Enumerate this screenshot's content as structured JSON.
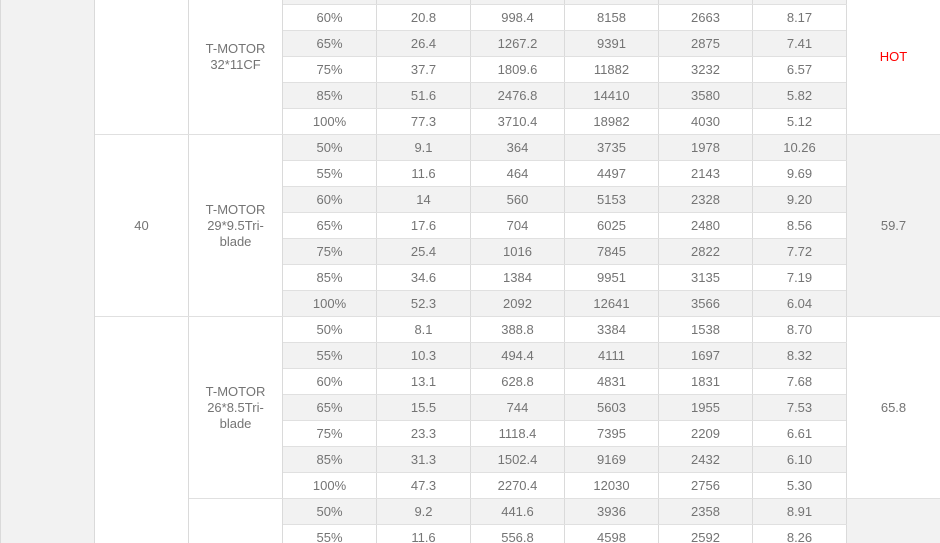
{
  "colors": {
    "text": "#747474",
    "stripe_bg": "#f2f2f2",
    "white_bg": "#ffffff",
    "hot_red": "#ff0000",
    "border": "#e0e0e0"
  },
  "table": {
    "left_block": {
      "label": "",
      "rowspan": 22
    },
    "col2_cells": [
      {
        "label": "",
        "rowspan": 6
      },
      {
        "label": "40",
        "rowspan": 7
      },
      {
        "label": "",
        "rowspan": 9
      }
    ],
    "sections": [
      {
        "propeller": "T-MOTOR 32*11CF",
        "note": {
          "label": "HOT",
          "color": "#ff0000",
          "bg": "#ffffff"
        },
        "rows": [
          {
            "throttle": "",
            "values": [
              "",
              "",
              "",
              "",
              ""
            ],
            "partial": true
          },
          {
            "throttle": "60%",
            "values": [
              "20.8",
              "998.4",
              "8158",
              "2663",
              "8.17"
            ]
          },
          {
            "throttle": "65%",
            "values": [
              "26.4",
              "1267.2",
              "9391",
              "2875",
              "7.41"
            ]
          },
          {
            "throttle": "75%",
            "values": [
              "37.7",
              "1809.6",
              "11882",
              "3232",
              "6.57"
            ]
          },
          {
            "throttle": "85%",
            "values": [
              "51.6",
              "2476.8",
              "14410",
              "3580",
              "5.82"
            ]
          },
          {
            "throttle": "100%",
            "values": [
              "77.3",
              "3710.4",
              "18982",
              "4030",
              "5.12"
            ]
          }
        ]
      },
      {
        "propeller": "T-MOTOR 29*9.5Tri-blade",
        "note": {
          "label": "59.7",
          "color": "#747474",
          "bg": "#f2f2f2"
        },
        "rows": [
          {
            "throttle": "50%",
            "values": [
              "9.1",
              "364",
              "3735",
              "1978",
              "10.26"
            ]
          },
          {
            "throttle": "55%",
            "values": [
              "11.6",
              "464",
              "4497",
              "2143",
              "9.69"
            ]
          },
          {
            "throttle": "60%",
            "values": [
              "14",
              "560",
              "5153",
              "2328",
              "9.20"
            ]
          },
          {
            "throttle": "65%",
            "values": [
              "17.6",
              "704",
              "6025",
              "2480",
              "8.56"
            ]
          },
          {
            "throttle": "75%",
            "values": [
              "25.4",
              "1016",
              "7845",
              "2822",
              "7.72"
            ]
          },
          {
            "throttle": "85%",
            "values": [
              "34.6",
              "1384",
              "9951",
              "3135",
              "7.19"
            ]
          },
          {
            "throttle": "100%",
            "values": [
              "52.3",
              "2092",
              "12641",
              "3566",
              "6.04"
            ]
          }
        ]
      },
      {
        "propeller": "T-MOTOR 26*8.5Tri-blade",
        "note": {
          "label": "65.8",
          "color": "#747474",
          "bg": "#ffffff"
        },
        "rows": [
          {
            "throttle": "50%",
            "values": [
              "8.1",
              "388.8",
              "3384",
              "1538",
              "8.70"
            ]
          },
          {
            "throttle": "55%",
            "values": [
              "10.3",
              "494.4",
              "4111",
              "1697",
              "8.32"
            ]
          },
          {
            "throttle": "60%",
            "values": [
              "13.1",
              "628.8",
              "4831",
              "1831",
              "7.68"
            ]
          },
          {
            "throttle": "65%",
            "values": [
              "15.5",
              "744",
              "5603",
              "1955",
              "7.53"
            ]
          },
          {
            "throttle": "75%",
            "values": [
              "23.3",
              "1118.4",
              "7395",
              "2209",
              "6.61"
            ]
          },
          {
            "throttle": "85%",
            "values": [
              "31.3",
              "1502.4",
              "9169",
              "2432",
              "6.10"
            ]
          },
          {
            "throttle": "100%",
            "values": [
              "47.3",
              "2270.4",
              "12030",
              "2756",
              "5.30"
            ]
          }
        ]
      },
      {
        "propeller": "",
        "note": {
          "label": "",
          "color": "#747474",
          "bg": "#f2f2f2"
        },
        "rows": [
          {
            "throttle": "50%",
            "values": [
              "9.2",
              "441.6",
              "3936",
              "2358",
              "8.91"
            ]
          },
          {
            "throttle": "55%",
            "values": [
              "11.6",
              "556.8",
              "4598",
              "2592",
              "8.26"
            ]
          }
        ]
      }
    ]
  }
}
